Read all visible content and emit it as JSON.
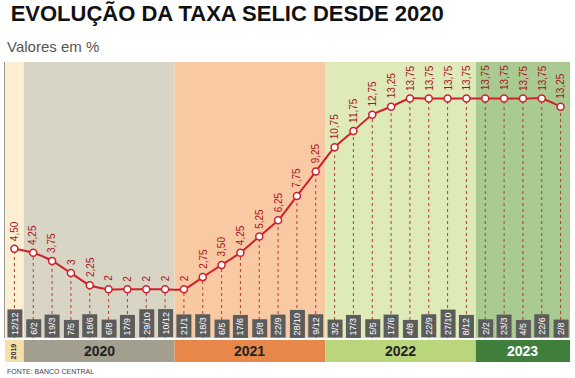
{
  "chart_data": {
    "type": "line",
    "title": "EVOLUÇÃO DA TAXA SELIC DESDE 2020",
    "subtitle": "Valores em %",
    "source": "FONTE: BANCO CENTRAL",
    "categories": [
      "12/12",
      "6/2",
      "19/3",
      "7/5",
      "18/6",
      "6/8",
      "17/9",
      "29/10",
      "10/12",
      "21/1",
      "18/3",
      "6/5",
      "17/6",
      "5/8",
      "22/9",
      "28/10",
      "9/12",
      "3/2",
      "17/3",
      "5/5",
      "17/6",
      "4/8",
      "22/9",
      "27/10",
      "8/12",
      "2/2",
      "23/3",
      "4/5",
      "22/6",
      "2/8"
    ],
    "values": [
      4.5,
      4.25,
      3.75,
      3,
      2.25,
      2,
      2,
      2,
      2,
      2,
      2.75,
      3.5,
      4.25,
      5.25,
      6.25,
      7.75,
      9.25,
      10.75,
      11.75,
      12.75,
      13.25,
      13.75,
      13.75,
      13.75,
      13.75,
      13.75,
      13.75,
      13.75,
      13.75,
      13.25
    ],
    "value_labels": [
      "4,50",
      "4,25",
      "3,75",
      "3",
      "2,25",
      "2",
      "2",
      "2",
      "2",
      "2",
      "2,75",
      "3,50",
      "4,25",
      "5,25",
      "6,25",
      "7,75",
      "9,25",
      "10,75",
      "11,75",
      "12,75",
      "13,25",
      "13,75",
      "13,75",
      "13,75",
      "13,75",
      "13,75",
      "13,75",
      "13,75",
      "13,75",
      "13,25"
    ],
    "groups": [
      {
        "label": "2019",
        "categories": [
          "12/12"
        ],
        "color": "#fcefd2"
      },
      {
        "label": "2020",
        "categories": [
          "6/2",
          "19/3",
          "7/5",
          "18/6",
          "6/8",
          "17/9",
          "29/10",
          "10/12"
        ],
        "color": "#d9d5c5"
      },
      {
        "label": "2021",
        "categories": [
          "21/1",
          "18/3",
          "6/5",
          "17/6",
          "5/8",
          "22/9",
          "28/10",
          "9/12"
        ],
        "color": "#f8c9a2"
      },
      {
        "label": "2022",
        "categories": [
          "3/2",
          "17/3",
          "5/5",
          "17/6",
          "4/8",
          "22/9",
          "27/10",
          "8/12"
        ],
        "color": "#dfeab9"
      },
      {
        "label": "2023",
        "categories": [
          "2/2",
          "23/3",
          "4/5",
          "22/6",
          "2/8"
        ],
        "color": "#a9cb92"
      }
    ],
    "color": "#d0202a",
    "marker": "circle",
    "data_labels": true,
    "tick_labels": "x",
    "grid": false,
    "ylim": [
      -1,
      16
    ],
    "yticks": []
  }
}
